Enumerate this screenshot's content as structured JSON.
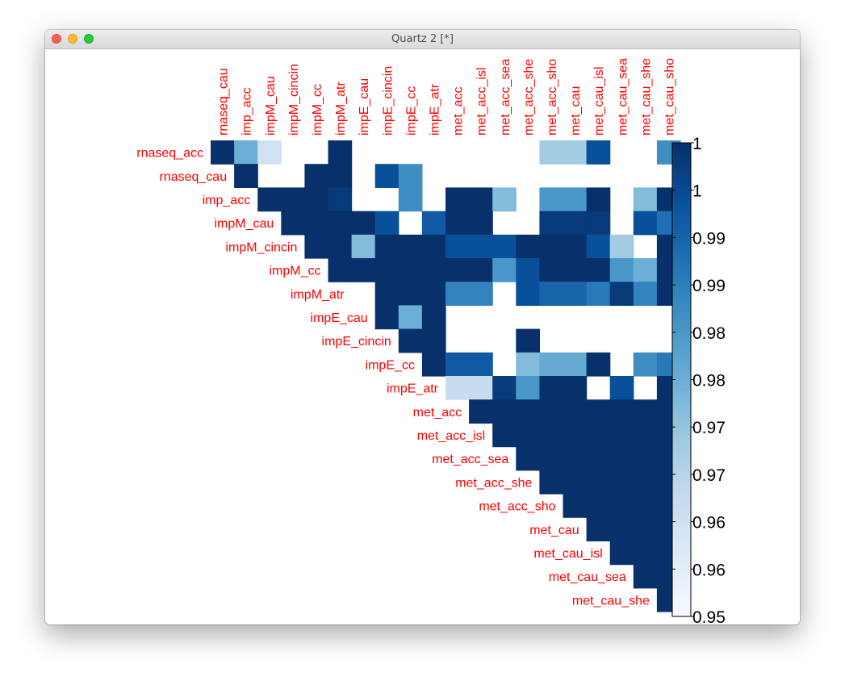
{
  "window": {
    "title": "Quartz 2 [*]"
  },
  "chart_data": {
    "type": "heatmap",
    "title": "",
    "row_labels": [
      "rnaseq_acc",
      "rnaseq_cau",
      "imp_acc",
      "impM_cau",
      "impM_cincin",
      "impM_cc",
      "impM_atr",
      "impE_cau",
      "impE_cincin",
      "impE_cc",
      "impE_atr",
      "met_acc",
      "met_acc_isl",
      "met_acc_sea",
      "met_acc_she",
      "met_acc_sho",
      "met_cau",
      "met_cau_isl",
      "met_cau_sea",
      "met_cau_she"
    ],
    "col_labels": [
      "rnaseq_cau",
      "imp_acc",
      "impM_cau",
      "impM_cincin",
      "impM_cc",
      "impM_atr",
      "impE_cau",
      "impE_cincin",
      "impE_cc",
      "impE_atr",
      "met_acc",
      "met_acc_isl",
      "met_acc_sea",
      "met_acc_she",
      "met_acc_sho",
      "met_cau",
      "met_cau_isl",
      "met_cau_sea",
      "met_cau_she",
      "met_cau_sho"
    ],
    "matrix": [
      [
        1.0,
        0.975,
        0.96,
        null,
        null,
        1.0,
        null,
        null,
        null,
        null,
        null,
        null,
        null,
        null,
        0.968,
        0.968,
        0.994,
        null,
        null,
        0.982
      ],
      [
        null,
        1.0,
        null,
        null,
        1.0,
        1.0,
        null,
        0.994,
        0.982,
        null,
        null,
        null,
        null,
        null,
        null,
        null,
        null,
        null,
        null,
        null
      ],
      [
        null,
        null,
        1.0,
        1.0,
        1.0,
        0.998,
        null,
        null,
        0.982,
        null,
        1.0,
        1.0,
        0.972,
        null,
        0.98,
        0.98,
        1.0,
        null,
        0.972,
        1.0
      ],
      [
        null,
        null,
        null,
        1.0,
        1.0,
        1.0,
        1.0,
        0.994,
        null,
        0.992,
        1.0,
        1.0,
        null,
        null,
        0.998,
        0.998,
        0.998,
        null,
        0.994,
        0.988
      ],
      [
        null,
        null,
        null,
        null,
        1.0,
        1.0,
        0.972,
        1.0,
        1.0,
        1.0,
        0.994,
        0.994,
        0.994,
        1.0,
        1.0,
        1.0,
        0.994,
        0.968,
        null,
        1.0
      ],
      [
        null,
        null,
        null,
        null,
        null,
        1.0,
        1.0,
        1.0,
        1.0,
        1.0,
        1.0,
        1.0,
        0.98,
        0.994,
        1.0,
        1.0,
        1.0,
        0.98,
        0.975,
        1.0
      ],
      [
        null,
        null,
        null,
        null,
        null,
        null,
        null,
        1.0,
        1.0,
        1.0,
        0.984,
        0.984,
        null,
        0.994,
        0.99,
        0.99,
        0.986,
        0.998,
        0.984,
        1.0
      ],
      [
        null,
        null,
        null,
        null,
        null,
        null,
        null,
        1.0,
        0.975,
        1.0,
        null,
        null,
        null,
        null,
        null,
        null,
        null,
        null,
        null,
        null
      ],
      [
        null,
        null,
        null,
        null,
        null,
        null,
        null,
        null,
        1.0,
        1.0,
        null,
        null,
        null,
        1.0,
        null,
        null,
        null,
        null,
        null,
        null
      ],
      [
        null,
        null,
        null,
        null,
        null,
        null,
        null,
        null,
        null,
        1.0,
        0.992,
        0.992,
        null,
        0.972,
        0.976,
        0.976,
        1.0,
        null,
        0.982,
        0.986
      ],
      [
        null,
        null,
        null,
        null,
        null,
        null,
        null,
        null,
        null,
        null,
        0.962,
        0.962,
        0.998,
        0.98,
        1.0,
        1.0,
        null,
        0.994,
        null,
        1.0
      ],
      [
        null,
        null,
        null,
        null,
        null,
        null,
        null,
        null,
        null,
        null,
        null,
        1.0,
        1.0,
        1.0,
        1.0,
        1.0,
        1.0,
        1.0,
        1.0,
        1.0
      ],
      [
        null,
        null,
        null,
        null,
        null,
        null,
        null,
        null,
        null,
        null,
        null,
        null,
        1.0,
        1.0,
        1.0,
        1.0,
        1.0,
        1.0,
        1.0,
        1.0
      ],
      [
        null,
        null,
        null,
        null,
        null,
        null,
        null,
        null,
        null,
        null,
        null,
        null,
        null,
        1.0,
        1.0,
        1.0,
        1.0,
        1.0,
        1.0,
        1.0
      ],
      [
        null,
        null,
        null,
        null,
        null,
        null,
        null,
        null,
        null,
        null,
        null,
        null,
        null,
        null,
        1.0,
        1.0,
        1.0,
        1.0,
        1.0,
        1.0
      ],
      [
        null,
        null,
        null,
        null,
        null,
        null,
        null,
        null,
        null,
        null,
        null,
        null,
        null,
        null,
        null,
        1.0,
        1.0,
        1.0,
        1.0,
        1.0
      ],
      [
        null,
        null,
        null,
        null,
        null,
        null,
        null,
        null,
        null,
        null,
        null,
        null,
        null,
        null,
        null,
        null,
        1.0,
        1.0,
        1.0,
        1.0
      ],
      [
        null,
        null,
        null,
        null,
        null,
        null,
        null,
        null,
        null,
        null,
        null,
        null,
        null,
        null,
        null,
        null,
        null,
        1.0,
        1.0,
        1.0
      ],
      [
        null,
        null,
        null,
        null,
        null,
        null,
        null,
        null,
        null,
        null,
        null,
        null,
        null,
        null,
        null,
        null,
        null,
        null,
        1.0,
        1.0
      ],
      [
        null,
        null,
        null,
        null,
        null,
        null,
        null,
        null,
        null,
        null,
        null,
        null,
        null,
        null,
        null,
        null,
        null,
        null,
        null,
        1.0
      ]
    ],
    "color_range": [
      0.95,
      1.0
    ],
    "colorbar": {
      "tick_labels": [
        "1",
        "1",
        "0.99",
        "0.99",
        "0.98",
        "0.98",
        "0.97",
        "0.97",
        "0.96",
        "0.96",
        "0.95"
      ],
      "tick_values": [
        1.0,
        0.995,
        0.99,
        0.985,
        0.98,
        0.975,
        0.97,
        0.965,
        0.96,
        0.955,
        0.95
      ]
    },
    "colorscale": [
      "#f7fbff",
      "#deebf7",
      "#c6dbef",
      "#9ecae1",
      "#6baed6",
      "#4292c6",
      "#2171b5",
      "#08519c",
      "#08306b"
    ],
    "label_color": "#ff0000"
  }
}
